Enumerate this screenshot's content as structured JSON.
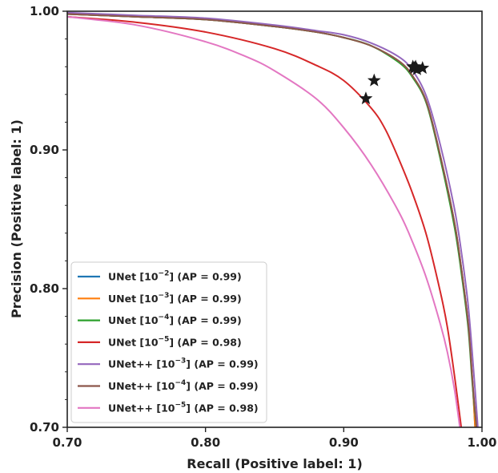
{
  "chart_data": {
    "type": "line",
    "xlabel": "Recall (Positive label: 1)",
    "ylabel": "Precision (Positive label: 1)",
    "xlim": [
      0.7,
      1.0
    ],
    "ylim": [
      0.7,
      1.0
    ],
    "x_ticks": [
      "0.70",
      "0.80",
      "0.90",
      "1.00"
    ],
    "y_ticks": [
      "0.70",
      "0.80",
      "0.90",
      "1.00"
    ],
    "grid": false,
    "legend_position": "lower-left",
    "series": [
      {
        "name": "UNet [10^-2] (AP = 0.99)",
        "label": {
          "base": "UNet [10",
          "exp": "−2",
          "tail": "] (AP = 0.99)"
        },
        "color": "#1f77b4",
        "x": [
          0.7,
          0.75,
          0.8,
          0.85,
          0.88,
          0.9,
          0.92,
          0.94,
          0.95,
          0.96,
          0.97,
          0.98,
          0.985,
          0.99,
          0.993,
          0.995
        ],
        "y": [
          0.998,
          0.996,
          0.994,
          0.989,
          0.985,
          0.981,
          0.975,
          0.964,
          0.953,
          0.934,
          0.895,
          0.848,
          0.815,
          0.775,
          0.735,
          0.7
        ],
        "marker": [
          0.951,
          0.959
        ]
      },
      {
        "name": "UNet [10^-3] (AP = 0.99)",
        "label": {
          "base": "UNet [10",
          "exp": "−3",
          "tail": "] (AP = 0.99)"
        },
        "color": "#ff7f0e",
        "x": [
          0.7,
          0.75,
          0.8,
          0.85,
          0.88,
          0.9,
          0.92,
          0.94,
          0.95,
          0.96,
          0.97,
          0.98,
          0.985,
          0.99,
          0.993,
          0.995
        ],
        "y": [
          0.998,
          0.996,
          0.994,
          0.989,
          0.985,
          0.981,
          0.975,
          0.964,
          0.953,
          0.934,
          0.895,
          0.848,
          0.815,
          0.775,
          0.735,
          0.7
        ],
        "marker": [
          0.953,
          0.958
        ]
      },
      {
        "name": "UNet [10^-4] (AP = 0.99)",
        "label": {
          "base": "UNet [10",
          "exp": "−4",
          "tail": "] (AP = 0.99)"
        },
        "color": "#2ca02c",
        "x": [
          0.7,
          0.75,
          0.8,
          0.85,
          0.88,
          0.9,
          0.92,
          0.94,
          0.95,
          0.96,
          0.97,
          0.98,
          0.985,
          0.99,
          0.993,
          0.996
        ],
        "y": [
          0.998,
          0.996,
          0.994,
          0.989,
          0.985,
          0.981,
          0.975,
          0.963,
          0.952,
          0.933,
          0.893,
          0.845,
          0.812,
          0.772,
          0.732,
          0.7
        ],
        "marker": [
          0.952,
          0.96
        ]
      },
      {
        "name": "UNet [10^-5] (AP = 0.98)",
        "label": {
          "base": "UNet [10",
          "exp": "−5",
          "tail": "] (AP = 0.98)"
        },
        "color": "#d62728",
        "x": [
          0.7,
          0.75,
          0.8,
          0.85,
          0.88,
          0.9,
          0.92,
          0.93,
          0.94,
          0.95,
          0.96,
          0.97,
          0.975,
          0.98,
          0.985
        ],
        "y": [
          0.996,
          0.992,
          0.985,
          0.973,
          0.961,
          0.95,
          0.93,
          0.915,
          0.893,
          0.868,
          0.838,
          0.797,
          0.772,
          0.738,
          0.7
        ],
        "marker": [
          0.922,
          0.95
        ]
      },
      {
        "name": "UNet++ [10^-3] (AP = 0.99)",
        "label": {
          "base": "UNet++ [10",
          "exp": "−3",
          "tail": "] (AP = 0.99)"
        },
        "color": "#9467bd",
        "x": [
          0.7,
          0.75,
          0.8,
          0.85,
          0.88,
          0.9,
          0.92,
          0.94,
          0.95,
          0.96,
          0.97,
          0.98,
          0.985,
          0.99,
          0.994,
          0.997
        ],
        "y": [
          0.999,
          0.997,
          0.995,
          0.99,
          0.986,
          0.983,
          0.977,
          0.967,
          0.957,
          0.938,
          0.903,
          0.858,
          0.827,
          0.788,
          0.74,
          0.7
        ],
        "marker": [
          0.957,
          0.959
        ]
      },
      {
        "name": "UNet++ [10^-4] (AP = 0.99)",
        "label": {
          "base": "UNet++ [10",
          "exp": "−4",
          "tail": "] (AP = 0.99)"
        },
        "color": "#8c564b",
        "x": [
          0.7,
          0.75,
          0.8,
          0.85,
          0.88,
          0.9,
          0.92,
          0.94,
          0.95,
          0.96,
          0.97,
          0.98,
          0.985,
          0.99,
          0.993,
          0.996
        ],
        "y": [
          0.998,
          0.996,
          0.994,
          0.989,
          0.985,
          0.981,
          0.975,
          0.964,
          0.953,
          0.934,
          0.895,
          0.848,
          0.815,
          0.775,
          0.735,
          0.7
        ],
        "marker": [
          0.95,
          0.96
        ]
      },
      {
        "name": "UNet++ [10^-5] (AP = 0.98)",
        "label": {
          "base": "UNet++ [10",
          "exp": "−5",
          "tail": "] (AP = 0.98)"
        },
        "color": "#e377c2",
        "x": [
          0.7,
          0.75,
          0.8,
          0.83,
          0.85,
          0.88,
          0.9,
          0.92,
          0.94,
          0.95,
          0.96,
          0.97,
          0.975,
          0.98,
          0.984
        ],
        "y": [
          0.996,
          0.99,
          0.978,
          0.967,
          0.957,
          0.937,
          0.916,
          0.889,
          0.855,
          0.833,
          0.807,
          0.774,
          0.754,
          0.728,
          0.7
        ],
        "marker": [
          0.916,
          0.937
        ]
      }
    ]
  }
}
